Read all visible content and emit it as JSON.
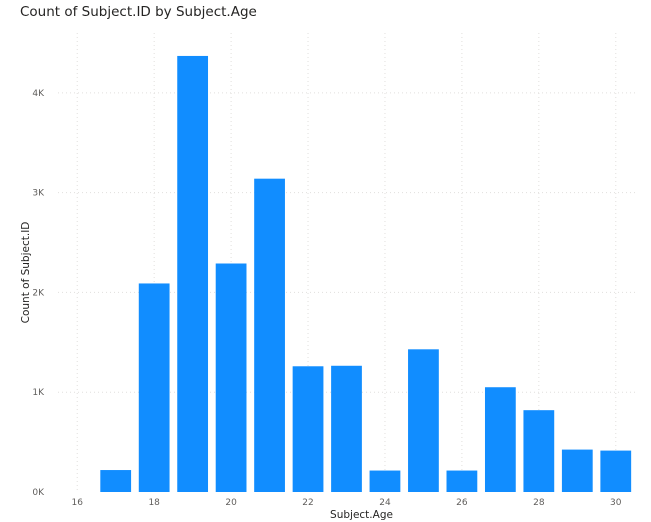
{
  "chart_data": {
    "type": "bar",
    "title": "Count of Subject.ID by Subject.Age",
    "xlabel": "Subject.Age",
    "ylabel": "Count of Subject.ID",
    "x": [
      17,
      18,
      19,
      20,
      21,
      22,
      23,
      24,
      25,
      26,
      27,
      28,
      29,
      30
    ],
    "values": [
      220,
      2090,
      4370,
      2290,
      3140,
      1260,
      1265,
      215,
      1430,
      215,
      1050,
      820,
      425,
      415
    ],
    "xlim": [
      15.5,
      30.5
    ],
    "ylim": [
      0,
      4600
    ],
    "x_ticks": [
      16,
      18,
      20,
      22,
      24,
      26,
      28,
      30
    ],
    "x_tick_labels": [
      "16",
      "18",
      "20",
      "22",
      "24",
      "26",
      "28",
      "30"
    ],
    "y_ticks": [
      0,
      1000,
      2000,
      3000,
      4000
    ],
    "y_tick_labels": [
      "0K",
      "1K",
      "2K",
      "3K",
      "4K"
    ],
    "grid": true,
    "bar_color": "#118dff"
  }
}
